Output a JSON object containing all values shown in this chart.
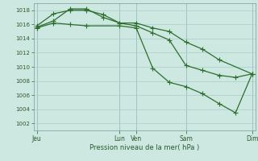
{
  "background_color": "#cce8e0",
  "grid_color": "#aacccc",
  "line_color": "#2d6e2d",
  "marker_color": "#2d6e2d",
  "xlabel": "Pression niveau de la mer( hPa )",
  "ylim": [
    1001,
    1019
  ],
  "yticks": [
    1002,
    1004,
    1006,
    1008,
    1010,
    1012,
    1014,
    1016,
    1018
  ],
  "xlim": [
    -0.2,
    13.2
  ],
  "day_labels": [
    "Jeu",
    "Lun",
    "Ven",
    "Sam",
    "Dim"
  ],
  "day_positions": [
    0,
    5,
    6,
    9,
    13
  ],
  "series1_x": [
    0,
    1,
    2,
    3,
    4,
    5,
    6,
    7,
    8,
    9,
    10,
    11,
    13
  ],
  "series1_y": [
    1015.8,
    1017.5,
    1018.0,
    1018.0,
    1017.4,
    1016.2,
    1016.2,
    1015.5,
    1015.0,
    1013.5,
    1012.5,
    1011.0,
    1009.0
  ],
  "series2_x": [
    0,
    1,
    2,
    3,
    4,
    5,
    6,
    7,
    8,
    9,
    10,
    11,
    12,
    13
  ],
  "series2_y": [
    1015.6,
    1016.5,
    1018.2,
    1018.2,
    1017.0,
    1016.2,
    1015.8,
    1014.8,
    1013.8,
    1010.2,
    1009.5,
    1008.8,
    1008.5,
    1009.0
  ],
  "series3_x": [
    0,
    1,
    2,
    3,
    5,
    6,
    7,
    8,
    9,
    10,
    11,
    12,
    13
  ],
  "series3_y": [
    1015.5,
    1016.2,
    1016.0,
    1015.8,
    1015.8,
    1015.5,
    1009.8,
    1007.8,
    1007.2,
    1006.2,
    1004.8,
    1003.5,
    1009.0
  ]
}
